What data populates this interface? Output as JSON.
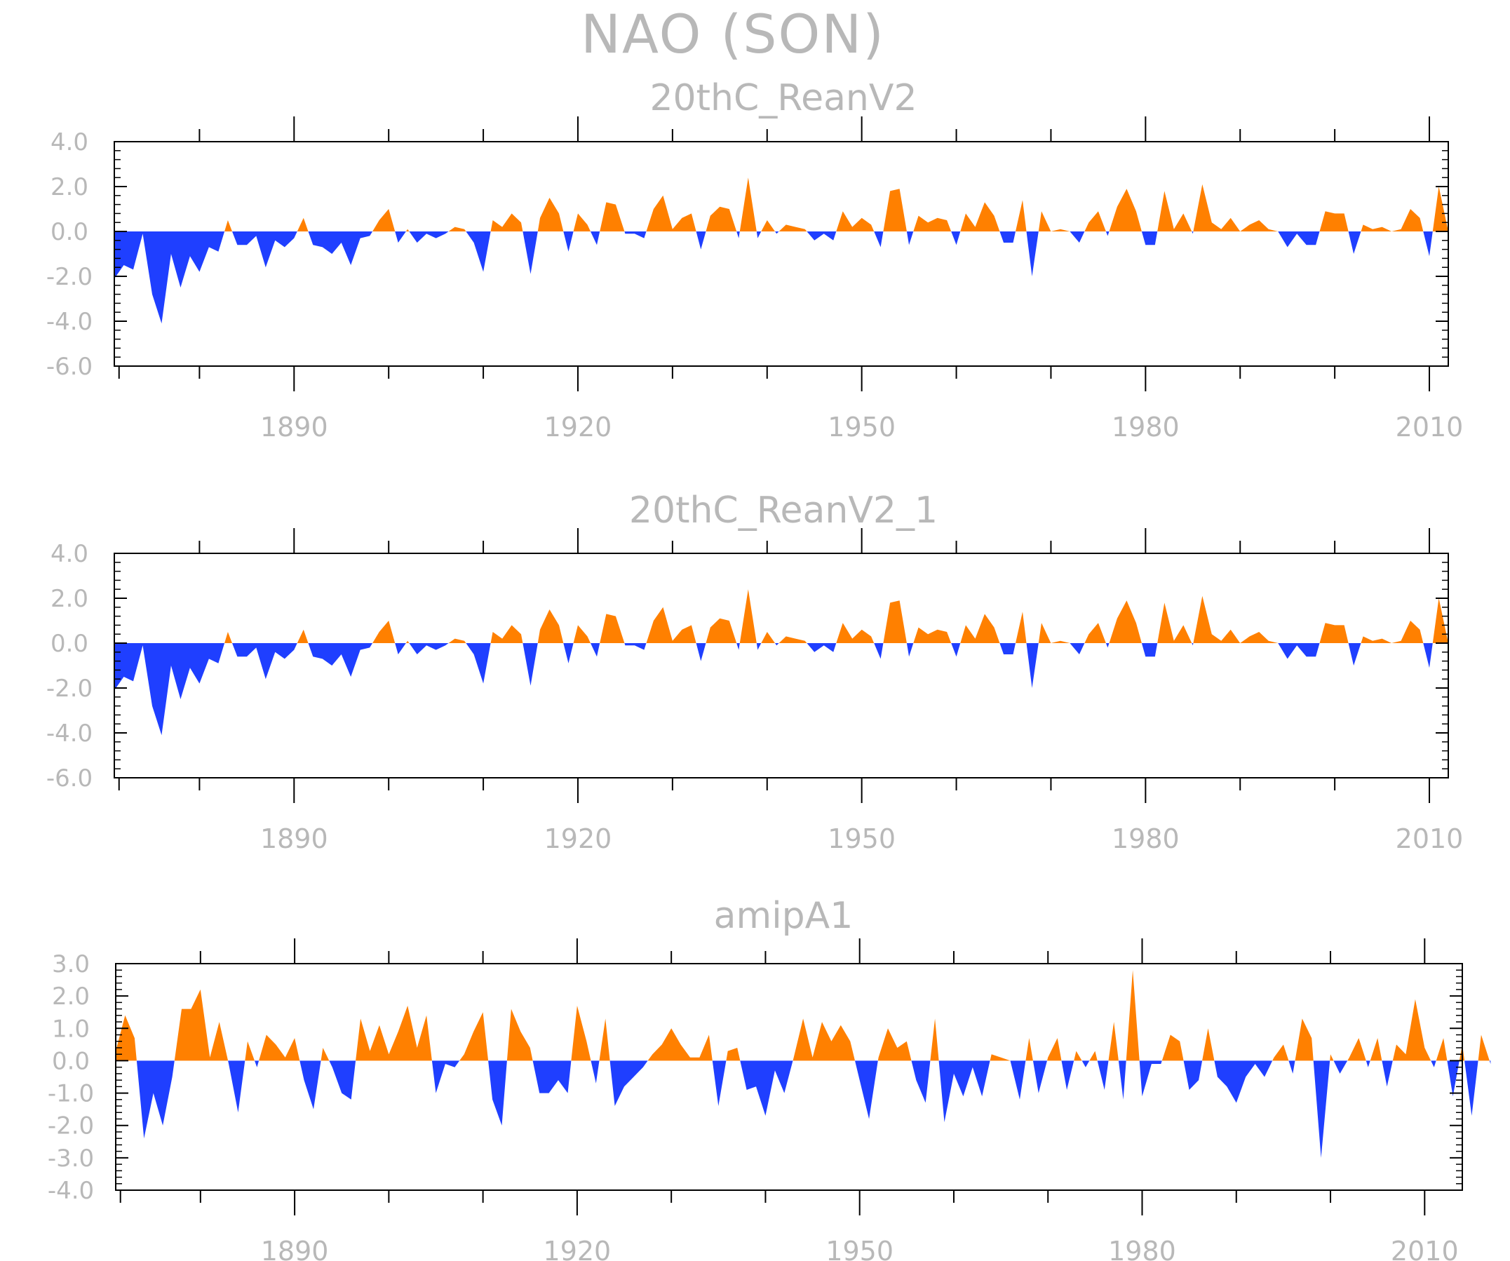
{
  "title": "NAO (SON)",
  "colors": {
    "positive": "#ff8000",
    "negative": "#1f3fff",
    "axis": "#000000",
    "text": "#b8b8b8"
  },
  "chart_data": [
    {
      "type": "area",
      "title": "20thC_ReanV2",
      "xlabel": "",
      "ylabel": "",
      "xlim": [
        1871,
        2012
      ],
      "ylim": [
        -6.0,
        4.0
      ],
      "ytick_labels": [
        "4.0",
        "2.0",
        "0.0",
        "-2.0",
        "-4.0",
        "-6.0"
      ],
      "xtick_labels": [
        "1890",
        "1920",
        "1950",
        "1980",
        "2010"
      ],
      "grid": false,
      "x_start": 1871,
      "values": [
        -2.1,
        -1.5,
        -1.7,
        -0.1,
        -2.8,
        -4.1,
        -1.0,
        -2.5,
        -1.1,
        -1.8,
        -0.7,
        -0.9,
        0.5,
        -0.6,
        -0.6,
        -0.2,
        -1.6,
        -0.4,
        -0.7,
        -0.3,
        0.6,
        -0.6,
        -0.7,
        -1.0,
        -0.5,
        -1.5,
        -0.3,
        -0.2,
        0.5,
        1.0,
        -0.5,
        0.1,
        -0.5,
        -0.1,
        -0.3,
        -0.1,
        0.2,
        0.1,
        -0.5,
        -1.8,
        0.5,
        0.2,
        0.8,
        0.4,
        -1.9,
        0.6,
        1.5,
        0.8,
        -0.9,
        0.8,
        0.3,
        -0.6,
        1.3,
        1.2,
        -0.1,
        -0.1,
        -0.3,
        1.0,
        1.6,
        0.1,
        0.6,
        0.8,
        -0.8,
        0.7,
        1.1,
        1.0,
        -0.3,
        2.4,
        -0.3,
        0.5,
        -0.1,
        0.3,
        0.2,
        0.1,
        -0.4,
        -0.1,
        -0.4,
        0.9,
        0.2,
        0.6,
        0.3,
        -0.7,
        1.8,
        1.9,
        -0.6,
        0.7,
        0.4,
        0.6,
        0.5,
        -0.6,
        0.8,
        0.2,
        1.3,
        0.7,
        -0.5,
        -0.5,
        1.4,
        -2.0,
        0.9,
        0.0,
        0.1,
        0.0,
        -0.5,
        0.4,
        0.9,
        -0.2,
        1.1,
        1.9,
        0.9,
        -0.6,
        -0.6,
        1.8,
        0.1,
        0.8,
        -0.1,
        2.1,
        0.4,
        0.1,
        0.6,
        0.0,
        0.3,
        0.5,
        0.1,
        0.0,
        -0.7,
        -0.1,
        -0.6,
        -0.6,
        0.9,
        0.8,
        0.8,
        -1.0,
        0.3,
        0.1,
        0.2,
        0.0,
        0.1,
        1.0,
        0.6,
        -1.1,
        2.0,
        0.0
      ]
    },
    {
      "type": "area",
      "title": "20thC_ReanV2_1",
      "xlabel": "",
      "ylabel": "",
      "xlim": [
        1871,
        2012
      ],
      "ylim": [
        -6.0,
        4.0
      ],
      "ytick_labels": [
        "4.0",
        "2.0",
        "0.0",
        "-2.0",
        "-4.0",
        "-6.0"
      ],
      "xtick_labels": [
        "1890",
        "1920",
        "1950",
        "1980",
        "2010"
      ],
      "grid": false,
      "x_start": 1871,
      "values": [
        -2.1,
        -1.5,
        -1.7,
        -0.1,
        -2.8,
        -4.1,
        -1.0,
        -2.5,
        -1.1,
        -1.8,
        -0.7,
        -0.9,
        0.5,
        -0.6,
        -0.6,
        -0.2,
        -1.6,
        -0.4,
        -0.7,
        -0.3,
        0.6,
        -0.6,
        -0.7,
        -1.0,
        -0.5,
        -1.5,
        -0.3,
        -0.2,
        0.5,
        1.0,
        -0.5,
        0.1,
        -0.5,
        -0.1,
        -0.3,
        -0.1,
        0.2,
        0.1,
        -0.5,
        -1.8,
        0.5,
        0.2,
        0.8,
        0.4,
        -1.9,
        0.6,
        1.5,
        0.8,
        -0.9,
        0.8,
        0.3,
        -0.6,
        1.3,
        1.2,
        -0.1,
        -0.1,
        -0.3,
        1.0,
        1.6,
        0.1,
        0.6,
        0.8,
        -0.8,
        0.7,
        1.1,
        1.0,
        -0.3,
        2.4,
        -0.3,
        0.5,
        -0.1,
        0.3,
        0.2,
        0.1,
        -0.4,
        -0.1,
        -0.4,
        0.9,
        0.2,
        0.6,
        0.3,
        -0.7,
        1.8,
        1.9,
        -0.6,
        0.7,
        0.4,
        0.6,
        0.5,
        -0.6,
        0.8,
        0.2,
        1.3,
        0.7,
        -0.5,
        -0.5,
        1.4,
        -2.0,
        0.9,
        0.0,
        0.1,
        0.0,
        -0.5,
        0.4,
        0.9,
        -0.2,
        1.1,
        1.9,
        0.9,
        -0.6,
        -0.6,
        1.8,
        0.1,
        0.8,
        -0.1,
        2.1,
        0.4,
        0.1,
        0.6,
        0.0,
        0.3,
        0.5,
        0.1,
        0.0,
        -0.7,
        -0.1,
        -0.6,
        -0.6,
        0.9,
        0.8,
        0.8,
        -1.0,
        0.3,
        0.1,
        0.2,
        0.0,
        0.1,
        1.0,
        0.6,
        -1.1,
        2.0,
        0.0
      ]
    },
    {
      "type": "area",
      "title": "amipA1",
      "xlabel": "",
      "ylabel": "",
      "xlim": [
        1871,
        2014
      ],
      "ylim": [
        -4.0,
        3.0
      ],
      "ytick_labels": [
        "3.0",
        "2.0",
        "1.0",
        "0.0",
        "-1.0",
        "-2.0",
        "-3.0",
        "-4.0"
      ],
      "xtick_labels": [
        "1890",
        "1920",
        "1950",
        "1980",
        "2010"
      ],
      "grid": false,
      "x_start": 1871,
      "values": [
        0.3,
        1.4,
        0.7,
        -2.4,
        -1.0,
        -2.0,
        -0.5,
        1.6,
        1.6,
        2.2,
        0.1,
        1.2,
        -0.1,
        -1.6,
        0.6,
        -0.2,
        0.8,
        0.5,
        0.1,
        0.7,
        -0.6,
        -1.5,
        0.4,
        -0.2,
        -1.0,
        -1.2,
        1.3,
        0.3,
        1.1,
        0.2,
        0.9,
        1.7,
        0.4,
        1.4,
        -1.0,
        -0.1,
        -0.2,
        0.2,
        0.9,
        1.5,
        -1.2,
        -2.0,
        1.6,
        0.9,
        0.4,
        -1.0,
        -1.0,
        -0.6,
        -1.0,
        1.7,
        0.6,
        -0.7,
        1.3,
        -1.4,
        -0.8,
        -0.5,
        -0.2,
        0.2,
        0.5,
        1.0,
        0.5,
        0.1,
        0.1,
        0.8,
        -1.4,
        0.3,
        0.4,
        -0.9,
        -0.8,
        -1.7,
        -0.3,
        -1.0,
        0.1,
        1.3,
        0.1,
        1.2,
        0.6,
        1.1,
        0.6,
        -0.6,
        -1.8,
        0.1,
        1.0,
        0.4,
        0.6,
        -0.6,
        -1.3,
        1.3,
        -1.9,
        -0.4,
        -1.1,
        -0.2,
        -1.1,
        0.2,
        0.1,
        0.0,
        -1.2,
        0.7,
        -1.0,
        0.1,
        0.7,
        -0.9,
        0.3,
        -0.2,
        0.3,
        -0.9,
        1.2,
        -1.2,
        2.8,
        -1.1,
        -0.1,
        -0.1,
        0.8,
        0.6,
        -0.9,
        -0.6,
        1.0,
        -0.5,
        -0.8,
        -1.3,
        -0.5,
        -0.1,
        -0.5,
        0.1,
        0.5,
        -0.4,
        1.3,
        0.7,
        -3.0,
        0.2,
        -0.4,
        0.1,
        0.7,
        -0.2,
        0.7,
        -0.8,
        0.5,
        0.2,
        1.9,
        0.4,
        -0.2,
        0.7,
        -1.1,
        0.5,
        -1.7,
        0.8,
        -0.1
      ]
    }
  ]
}
